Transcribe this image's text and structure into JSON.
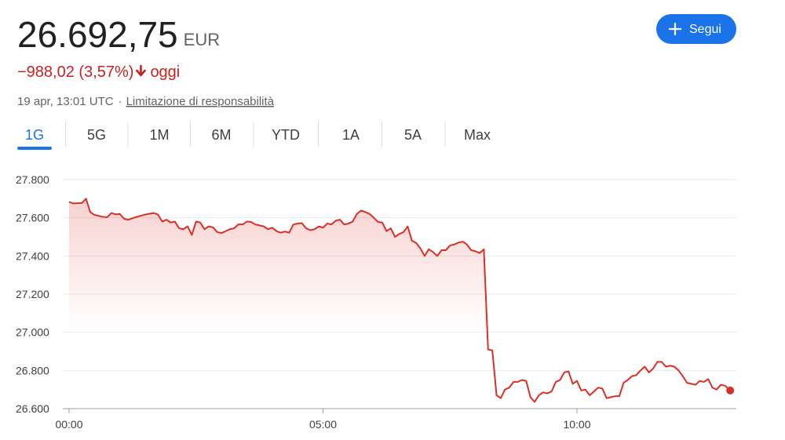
{
  "header": {
    "price": "26.692,75",
    "currency": "EUR",
    "change": "−988,02 (3,57%)",
    "period": "oggi",
    "timestamp": "19 apr, 13:01 UTC",
    "separator": "·",
    "disclaimer_link": "Limitazione di responsabilità",
    "follow_button": "Segui"
  },
  "tabs": [
    "1G",
    "5G",
    "1M",
    "6M",
    "YTD",
    "1A",
    "5A",
    "Max"
  ],
  "chart_data": {
    "type": "line",
    "color": "#d93025",
    "grid": true,
    "xlim": [
      0,
      785
    ],
    "xticks": [
      {
        "value": 0,
        "label": "00:00"
      },
      {
        "value": 300,
        "label": "05:00"
      },
      {
        "value": 600,
        "label": "10:00"
      }
    ],
    "ylim": [
      26600,
      27800
    ],
    "yticks": [
      {
        "value": 26600,
        "label": "26.600"
      },
      {
        "value": 26800,
        "label": "26.800"
      },
      {
        "value": 27000,
        "label": "27.000"
      },
      {
        "value": 27200,
        "label": "27.200"
      },
      {
        "value": 27400,
        "label": "27.400"
      },
      {
        "value": 27600,
        "label": "27.600"
      },
      {
        "value": 27800,
        "label": "27.800"
      }
    ],
    "x": [
      0,
      5,
      10,
      15,
      20,
      25,
      30,
      40,
      45,
      50,
      55,
      60,
      65,
      70,
      80,
      90,
      100,
      105,
      110,
      115,
      120,
      125,
      130,
      135,
      140,
      145,
      150,
      155,
      160,
      165,
      170,
      175,
      180,
      190,
      195,
      200,
      205,
      210,
      215,
      220,
      225,
      230,
      235,
      240,
      245,
      250,
      255,
      260,
      265,
      270,
      275,
      280,
      285,
      290,
      295,
      300,
      305,
      310,
      315,
      320,
      325,
      330,
      335,
      340,
      345,
      350,
      355,
      360,
      365,
      370,
      375,
      380,
      385,
      390,
      395,
      400,
      405,
      410,
      415,
      420,
      425,
      430,
      435,
      440,
      445,
      450,
      455,
      460,
      465,
      470,
      475,
      480,
      485,
      490,
      495,
      500,
      505,
      510,
      515,
      520,
      525,
      530,
      535,
      540,
      545,
      550,
      555,
      560,
      565,
      570,
      575,
      580,
      585,
      590,
      595,
      600,
      605,
      610,
      615,
      620,
      625,
      630,
      635,
      640,
      645,
      650,
      655,
      660,
      665,
      670,
      675,
      680,
      685,
      690,
      695,
      700,
      705,
      710,
      715,
      720,
      725,
      730,
      735,
      740,
      745,
      750,
      755,
      760,
      765,
      770,
      775,
      781
    ],
    "values": [
      27683,
      27675,
      27676,
      27677,
      27700,
      27630,
      27615,
      27605,
      27603,
      27625,
      27618,
      27620,
      27595,
      27590,
      27605,
      27617,
      27625,
      27617,
      27580,
      27590,
      27575,
      27580,
      27545,
      27540,
      27555,
      27510,
      27580,
      27575,
      27540,
      27555,
      27550,
      27525,
      27520,
      27540,
      27545,
      27565,
      27565,
      27580,
      27578,
      27565,
      27560,
      27555,
      27540,
      27548,
      27530,
      27522,
      27528,
      27522,
      27565,
      27570,
      27572,
      27545,
      27535,
      27540,
      27555,
      27548,
      27570,
      27565,
      27585,
      27590,
      27565,
      27570,
      27580,
      27620,
      27638,
      27630,
      27620,
      27600,
      27578,
      27575,
      27530,
      27545,
      27500,
      27515,
      27525,
      27555,
      27480,
      27468,
      27440,
      27400,
      27435,
      27420,
      27400,
      27430,
      27430,
      27455,
      27460,
      27470,
      27475,
      27460,
      27430,
      27425,
      27415,
      27435,
      26910,
      26905,
      26670,
      26655,
      26700,
      26710,
      26740,
      26740,
      26750,
      26745,
      26660,
      26635,
      26670,
      26685,
      26680,
      26690,
      26740,
      26750,
      26790,
      26795,
      26730,
      26745,
      26695,
      26700,
      26670,
      26690,
      26710,
      26705,
      26655,
      26660,
      26665,
      26665,
      26735,
      26750,
      26770,
      26775,
      26800,
      26820,
      26790,
      26810,
      26845,
      26845,
      26820,
      26825,
      26820,
      26800,
      26770,
      26735,
      26730,
      26725,
      26745,
      26740,
      26755,
      26710,
      26700,
      26725,
      26720,
      26695
    ]
  }
}
